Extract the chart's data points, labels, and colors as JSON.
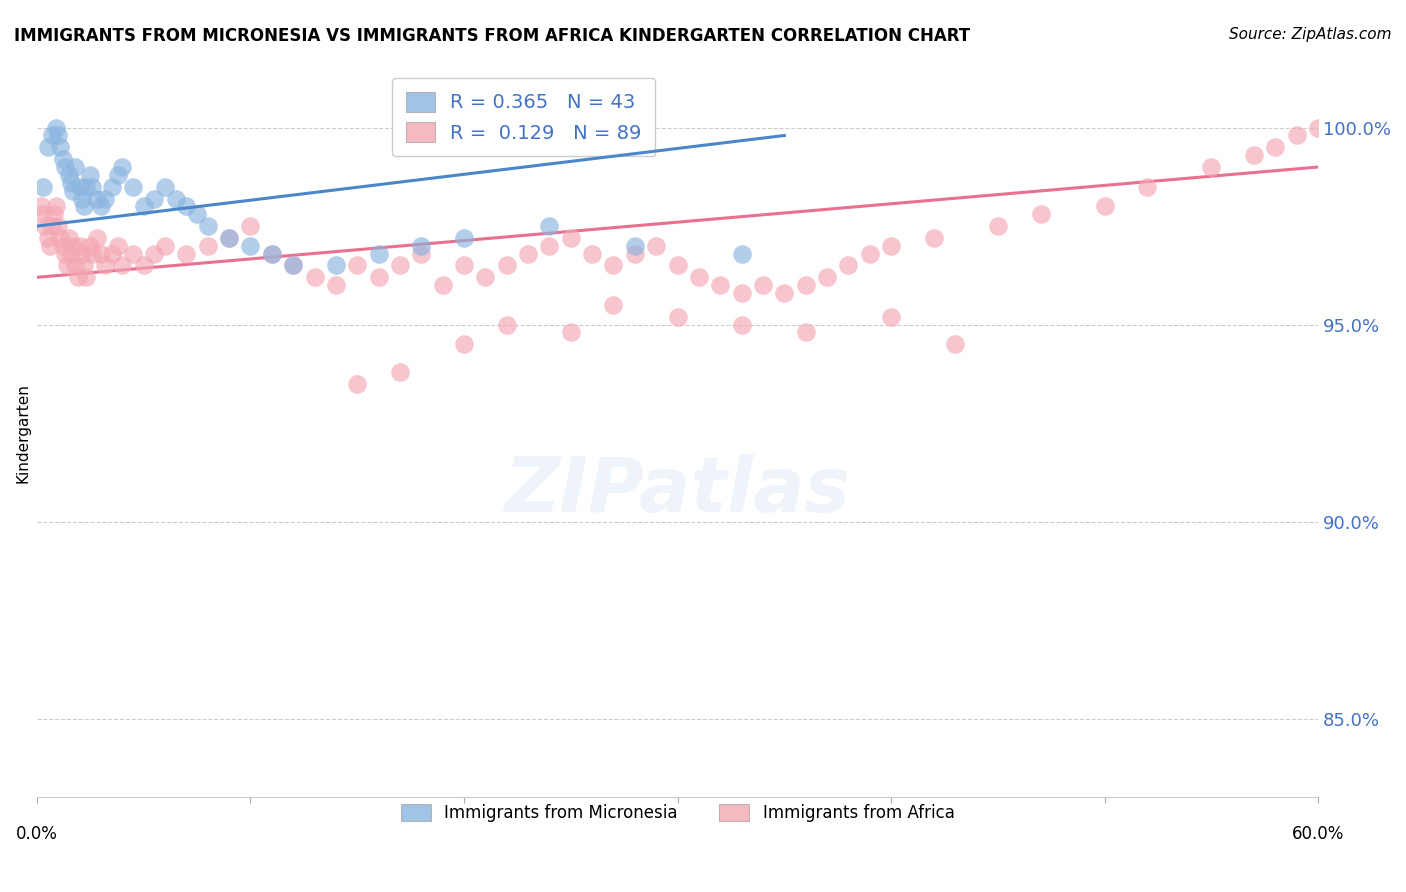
{
  "title": "IMMIGRANTS FROM MICRONESIA VS IMMIGRANTS FROM AFRICA KINDERGARTEN CORRELATION CHART",
  "source": "Source: ZipAtlas.com",
  "ylabel": "Kindergarten",
  "y_ticks": [
    85.0,
    90.0,
    95.0,
    100.0
  ],
  "y_tick_labels": [
    "85.0%",
    "90.0%",
    "95.0%",
    "100.0%"
  ],
  "x_range": [
    0.0,
    60.0
  ],
  "y_range": [
    83.0,
    101.5
  ],
  "blue_color": "#8ab4e0",
  "pink_color": "#f4a7b2",
  "blue_line_color": "#4a86c8",
  "pink_line_color": "#e87090",
  "legend_label_blue": "R = 0.365   N = 43",
  "legend_label_pink": "R =  0.129   N = 89",
  "legend_label_blue_bottom": "Immigrants from Micronesia",
  "legend_label_pink_bottom": "Immigrants from Africa",
  "blue_x": [
    0.3,
    0.5,
    0.7,
    0.9,
    1.0,
    1.1,
    1.2,
    1.3,
    1.5,
    1.6,
    1.7,
    1.8,
    2.0,
    2.1,
    2.2,
    2.3,
    2.5,
    2.6,
    2.8,
    3.0,
    3.2,
    3.5,
    3.8,
    4.0,
    4.5,
    5.0,
    5.5,
    6.0,
    6.5,
    7.0,
    7.5,
    8.0,
    9.0,
    10.0,
    11.0,
    12.0,
    14.0,
    16.0,
    18.0,
    20.0,
    24.0,
    28.0,
    33.0
  ],
  "blue_y": [
    98.5,
    99.5,
    99.8,
    100.0,
    99.8,
    99.5,
    99.2,
    99.0,
    98.8,
    98.6,
    98.4,
    99.0,
    98.5,
    98.2,
    98.0,
    98.5,
    98.8,
    98.5,
    98.2,
    98.0,
    98.2,
    98.5,
    98.8,
    99.0,
    98.5,
    98.0,
    98.2,
    98.5,
    98.2,
    98.0,
    97.8,
    97.5,
    97.2,
    97.0,
    96.8,
    96.5,
    96.5,
    96.8,
    97.0,
    97.2,
    97.5,
    97.0,
    96.8
  ],
  "pink_x": [
    0.2,
    0.3,
    0.4,
    0.5,
    0.6,
    0.7,
    0.8,
    0.9,
    1.0,
    1.1,
    1.2,
    1.3,
    1.4,
    1.5,
    1.6,
    1.7,
    1.8,
    1.9,
    2.0,
    2.1,
    2.2,
    2.3,
    2.5,
    2.6,
    2.8,
    3.0,
    3.2,
    3.5,
    3.8,
    4.0,
    4.5,
    5.0,
    5.5,
    6.0,
    7.0,
    8.0,
    9.0,
    10.0,
    11.0,
    12.0,
    13.0,
    14.0,
    15.0,
    16.0,
    17.0,
    18.0,
    19.0,
    20.0,
    21.0,
    22.0,
    23.0,
    24.0,
    25.0,
    26.0,
    27.0,
    28.0,
    29.0,
    30.0,
    31.0,
    32.0,
    33.0,
    34.0,
    35.0,
    36.0,
    37.0,
    38.0,
    39.0,
    40.0,
    42.0,
    45.0,
    47.0,
    50.0,
    52.0,
    55.0,
    57.0,
    58.0,
    59.0,
    60.0,
    27.0,
    30.0,
    33.0,
    36.0,
    40.0,
    43.0,
    25.0,
    22.0,
    20.0,
    17.0,
    15.0
  ],
  "pink_y": [
    98.0,
    97.8,
    97.5,
    97.2,
    97.0,
    97.5,
    97.8,
    98.0,
    97.5,
    97.2,
    97.0,
    96.8,
    96.5,
    97.2,
    96.8,
    97.0,
    96.5,
    96.2,
    97.0,
    96.8,
    96.5,
    96.2,
    97.0,
    96.8,
    97.2,
    96.8,
    96.5,
    96.8,
    97.0,
    96.5,
    96.8,
    96.5,
    96.8,
    97.0,
    96.8,
    97.0,
    97.2,
    97.5,
    96.8,
    96.5,
    96.2,
    96.0,
    96.5,
    96.2,
    96.5,
    96.8,
    96.0,
    96.5,
    96.2,
    96.5,
    96.8,
    97.0,
    97.2,
    96.8,
    96.5,
    96.8,
    97.0,
    96.5,
    96.2,
    96.0,
    95.8,
    96.0,
    95.8,
    96.0,
    96.2,
    96.5,
    96.8,
    97.0,
    97.2,
    97.5,
    97.8,
    98.0,
    98.5,
    99.0,
    99.3,
    99.5,
    99.8,
    100.0,
    95.5,
    95.2,
    95.0,
    94.8,
    95.2,
    94.5,
    94.8,
    95.0,
    94.5,
    93.8,
    93.5
  ],
  "blue_line_x": [
    0.0,
    35.0
  ],
  "blue_line_y": [
    97.5,
    99.8
  ],
  "pink_line_x": [
    0.0,
    60.0
  ],
  "pink_line_y": [
    96.2,
    99.0
  ]
}
